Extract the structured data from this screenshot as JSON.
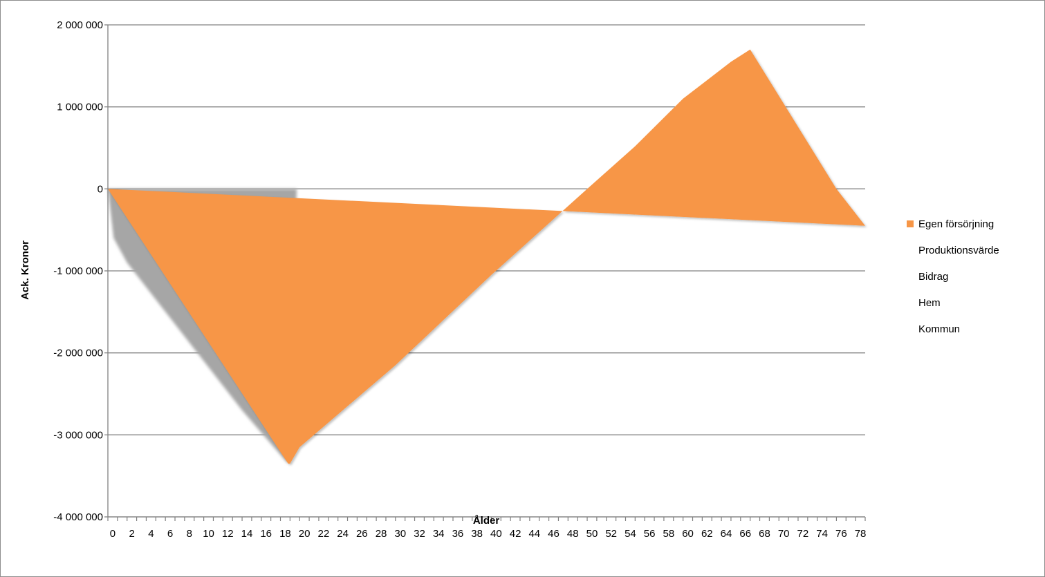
{
  "chart_data": {
    "type": "area",
    "title": "",
    "xlabel": "Ålder",
    "ylabel": "Ack. Kronor",
    "xlim": [
      0,
      79
    ],
    "ylim": [
      -4000000,
      2000000
    ],
    "x_tick_labels": [
      "0",
      "2",
      "4",
      "6",
      "8",
      "10",
      "12",
      "14",
      "16",
      "18",
      "20",
      "22",
      "24",
      "26",
      "28",
      "30",
      "32",
      "34",
      "36",
      "38",
      "40",
      "42",
      "44",
      "46",
      "48",
      "50",
      "52",
      "54",
      "56",
      "58",
      "60",
      "62",
      "64",
      "66",
      "68",
      "70",
      "72",
      "74",
      "76",
      "78"
    ],
    "y_ticks": [
      2000000,
      1000000,
      0,
      -1000000,
      -2000000,
      -3000000,
      -4000000
    ],
    "y_tick_labels": [
      "2 000 000",
      "1 000 000",
      "0",
      "-1 000 000",
      "-2 000 000",
      "-3 000 000",
      "-4 000 000"
    ],
    "grid": "horizontal",
    "legend_position": "right",
    "series": [
      {
        "name": "Egen försörjning",
        "color": "#F79646",
        "points": [
          [
            0,
            0
          ],
          [
            18.8,
            -3350000
          ],
          [
            19,
            -3350000
          ],
          [
            20,
            -3150000
          ],
          [
            30,
            -2150000
          ],
          [
            40,
            -1050000
          ],
          [
            50,
            0
          ],
          [
            55,
            520000
          ],
          [
            60,
            1100000
          ],
          [
            65,
            1550000
          ],
          [
            67,
            1700000
          ],
          [
            76,
            0
          ],
          [
            79,
            -450000
          ]
        ]
      },
      {
        "name": "Produktionsvärde",
        "color": "#ffffff",
        "points": []
      },
      {
        "name": "Bidrag",
        "color": "#ffffff",
        "points": []
      },
      {
        "name": "Hem",
        "color": "#ffffff",
        "points": []
      },
      {
        "name": "Kommun",
        "color": "#ffffff",
        "points": []
      }
    ],
    "background_area": {
      "color": "#a6a6a6",
      "points": [
        [
          0,
          0
        ],
        [
          0.6,
          -600000
        ],
        [
          2,
          -900000
        ],
        [
          5,
          -1350000
        ],
        [
          10,
          -2100000
        ],
        [
          14,
          -2700000
        ],
        [
          18.8,
          -3350000
        ],
        [
          19.7,
          0
        ]
      ]
    }
  }
}
